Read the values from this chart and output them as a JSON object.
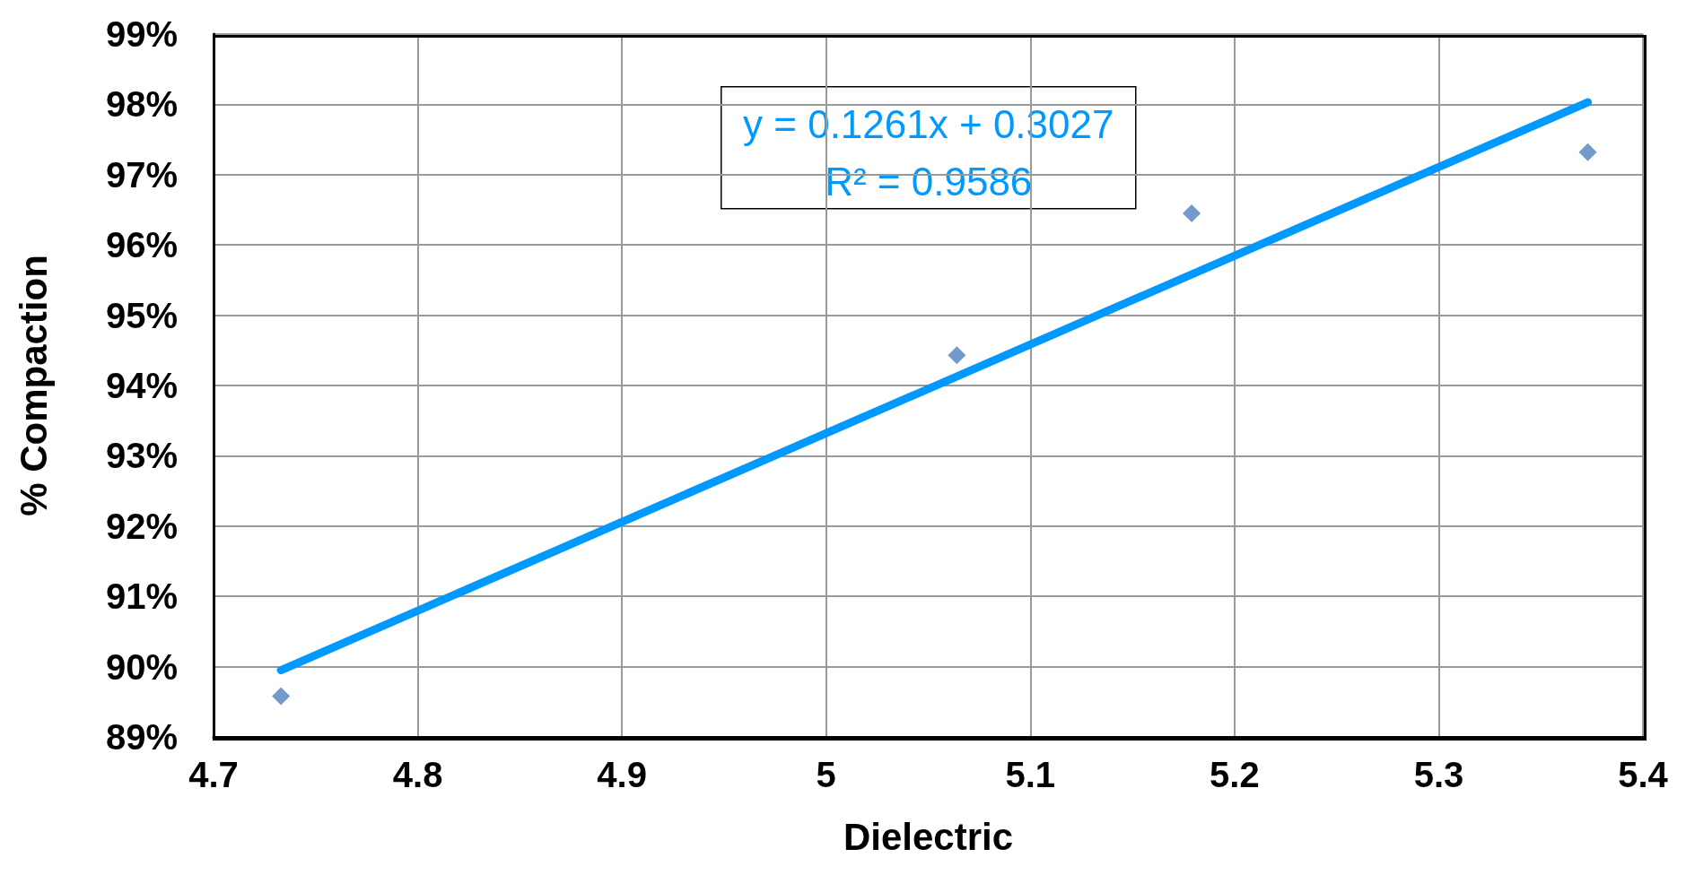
{
  "chart_data": {
    "type": "scatter",
    "xlabel": "Dielectric",
    "ylabel": "% Compaction",
    "series": [
      {
        "color": "#4f81bd",
        "marker": "diamond",
        "x": [
          4.733,
          5.064,
          5.179,
          5.373
        ],
        "values": [
          89.58,
          94.43,
          96.45,
          97.32
        ]
      },
      {
        "type": "line",
        "color": "#0099ff",
        "marker": "none",
        "line_style": "solid",
        "x": [
          4.733,
          5.373
        ],
        "values": [
          89.95,
          98.03
        ]
      }
    ],
    "annotations": [
      "y = 0.1261x + 0.3027",
      "R² = 0.9586"
    ],
    "xlim": [
      4.7,
      5.4
    ],
    "xticks": [
      4.7,
      4.8,
      4.9,
      5,
      5.1,
      5.2,
      5.3,
      5.4
    ],
    "ylim": [
      89,
      99
    ],
    "yticks": [
      {
        "value": 89,
        "label": "89%"
      },
      {
        "value": 90,
        "label": "90%"
      },
      {
        "value": 91,
        "label": "91%"
      },
      {
        "value": 92,
        "label": "92%"
      },
      {
        "value": 93,
        "label": "93%"
      },
      {
        "value": 94,
        "label": "94%"
      },
      {
        "value": 95,
        "label": "95%"
      },
      {
        "value": 96,
        "label": "96%"
      },
      {
        "value": 97,
        "label": "97%"
      },
      {
        "value": 98,
        "label": "98%"
      },
      {
        "value": 99,
        "label": "99%"
      }
    ],
    "grid": true
  }
}
